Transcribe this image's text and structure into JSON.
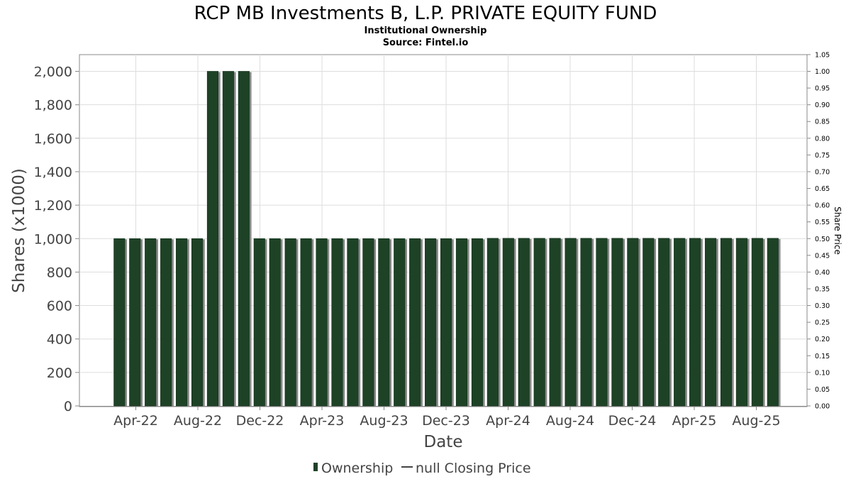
{
  "chart_data": {
    "type": "bar",
    "title": "RCP MB Investments B, L.P. PRIVATE EQUITY FUND",
    "subtitle_lines": [
      "Institutional Ownership",
      "Source: Fintel.io"
    ],
    "xlabel": "Date",
    "ylabel": "Shares (x1000)",
    "y2label": "Share Price",
    "ylim": [
      0,
      2100
    ],
    "y_ticks": [
      "0",
      "200",
      "400",
      "600",
      "800",
      "1,000",
      "1,200",
      "1,400",
      "1,600",
      "1,800",
      "2,000"
    ],
    "y2lim": [
      0,
      1.05
    ],
    "y2_ticks": [
      "0.00",
      "0.05",
      "0.10",
      "0.15",
      "0.20",
      "0.25",
      "0.30",
      "0.35",
      "0.40",
      "0.45",
      "0.50",
      "0.55",
      "0.60",
      "0.65",
      "0.70",
      "0.75",
      "0.80",
      "0.85",
      "0.90",
      "0.95",
      "1.00",
      "1.05"
    ],
    "x_ticks": [
      "Apr-22",
      "Aug-22",
      "Dec-22",
      "Apr-23",
      "Aug-23",
      "Dec-23",
      "Apr-24",
      "Aug-24",
      "Dec-24",
      "Apr-25",
      "Aug-25"
    ],
    "grid": true,
    "legend_position": "bottom",
    "series": [
      {
        "name": "Ownership",
        "color": "#1e4226",
        "values": [
          1000,
          1000,
          1000,
          1000,
          1000,
          1000,
          2000,
          2000,
          2000,
          1000,
          1000,
          1000,
          1000,
          1000,
          1000,
          1000,
          1000,
          1000,
          1000,
          1000,
          1000,
          1000,
          1000,
          1000,
          1002,
          1002,
          1002,
          1002,
          1002,
          1002,
          1002,
          1002,
          1002,
          1002,
          1002,
          1002,
          1002,
          1002,
          1002,
          1002,
          1002,
          1002,
          1002
        ]
      },
      {
        "name": "null Closing Price",
        "color": "#444444",
        "values": []
      }
    ]
  }
}
